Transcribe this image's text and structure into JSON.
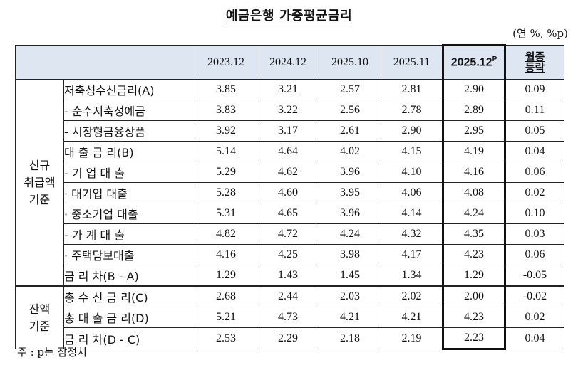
{
  "title": "예금은행 가중평균금리",
  "unit": "(연 %, %p)",
  "columns": [
    "2023.12",
    "2024.12",
    "2025.10",
    "2025.11",
    "2025.12",
    "월중\n등락"
  ],
  "highlight_superscript": "P",
  "groups": {
    "new": "신규\n취급액\n기준",
    "balance": "잔액\n기준"
  },
  "rows": [
    {
      "label": "저축성수신금리(A)",
      "values": [
        "3.85",
        "3.21",
        "2.57",
        "2.81",
        "2.90",
        "0.09"
      ]
    },
    {
      "label": "- 순수저축성예금",
      "values": [
        "3.83",
        "3.22",
        "2.56",
        "2.78",
        "2.89",
        "0.11"
      ]
    },
    {
      "label": "- 시장형금융상품",
      "values": [
        "3.92",
        "3.17",
        "2.61",
        "2.90",
        "2.95",
        "0.05"
      ]
    },
    {
      "label": "대 출 금 리(B)",
      "values": [
        "5.14",
        "4.64",
        "4.02",
        "4.15",
        "4.19",
        "0.04"
      ]
    },
    {
      "label": "- 기 업 대 출",
      "values": [
        "5.29",
        "4.62",
        "3.96",
        "4.10",
        "4.16",
        "0.06"
      ]
    },
    {
      "label": "· 대기업 대출",
      "values": [
        "5.28",
        "4.60",
        "3.95",
        "4.06",
        "4.08",
        "0.02"
      ]
    },
    {
      "label": "· 중소기업 대출",
      "values": [
        "5.31",
        "4.65",
        "3.96",
        "4.14",
        "4.24",
        "0.10"
      ]
    },
    {
      "label": "- 가 계 대 출",
      "values": [
        "4.82",
        "4.72",
        "4.24",
        "4.32",
        "4.35",
        "0.03"
      ]
    },
    {
      "label": "· 주택담보대출",
      "values": [
        "4.16",
        "4.25",
        "3.98",
        "4.17",
        "4.23",
        "0.06"
      ]
    },
    {
      "label": "금 리 차(B - A)",
      "values": [
        "1.29",
        "1.43",
        "1.45",
        "1.34",
        "1.29",
        "-0.05"
      ]
    },
    {
      "label": "총 수 신 금 리(C)",
      "values": [
        "2.68",
        "2.44",
        "2.03",
        "2.02",
        "2.00",
        "-0.02"
      ]
    },
    {
      "label": "총 대 출 금 리(D)",
      "values": [
        "5.21",
        "4.73",
        "4.21",
        "4.21",
        "4.23",
        "0.02"
      ]
    },
    {
      "label": "금 리 차(D - C)",
      "values": [
        "2.53",
        "2.29",
        "2.18",
        "2.19",
        "2.23",
        "0.04"
      ]
    }
  ],
  "note": "주 : p는 잠정치"
}
